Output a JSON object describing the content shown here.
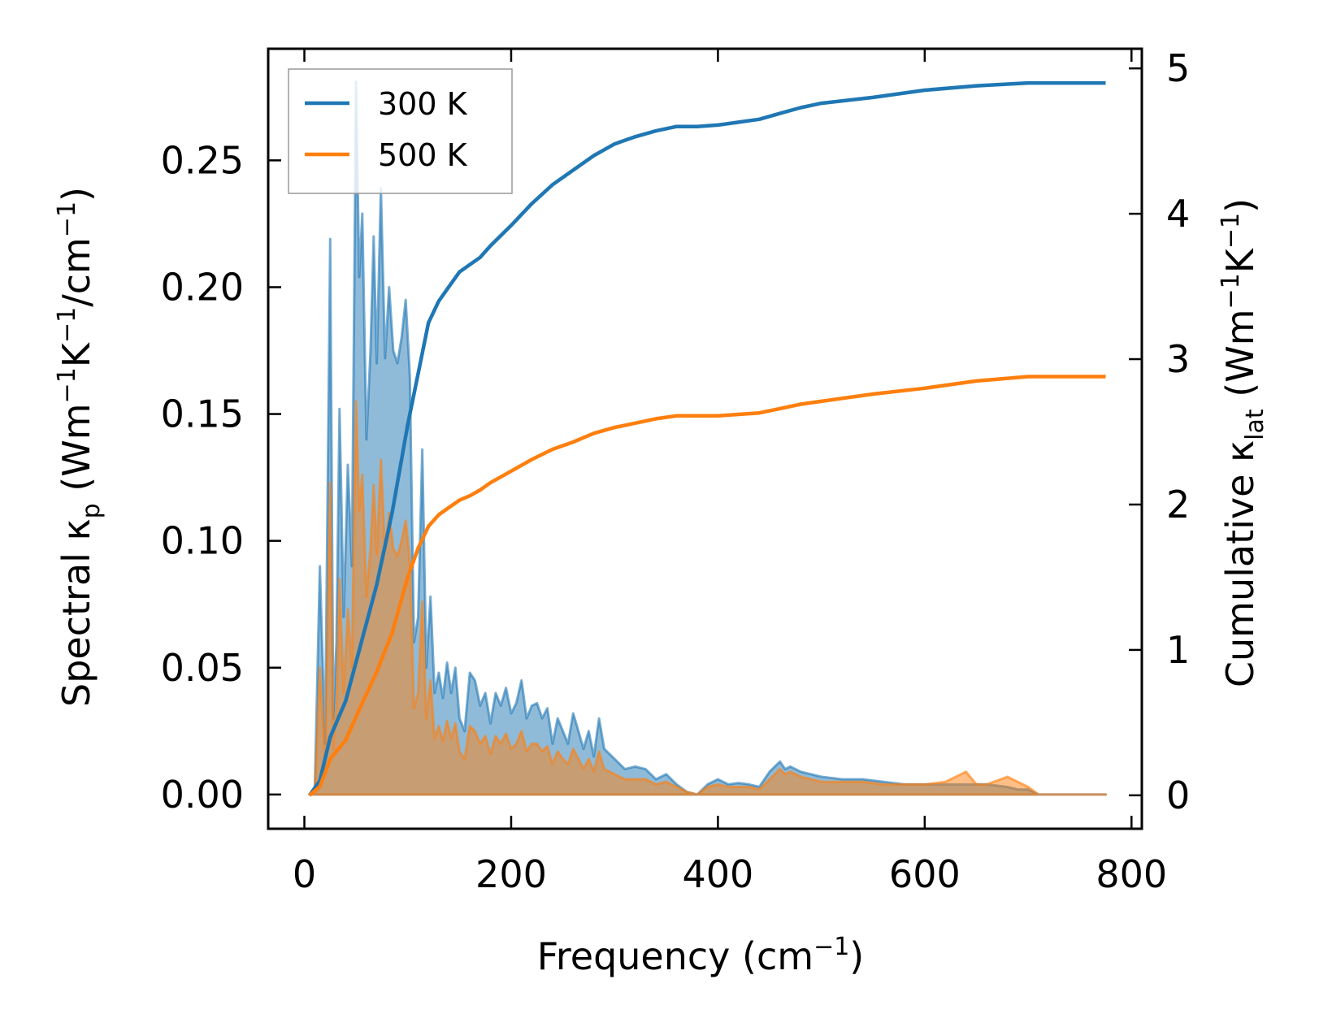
{
  "chart_data": {
    "type": "area",
    "xlabel": "Frequency",
    "xlabel_unit": "(cm",
    "xlabel_sup": "−1",
    "xlabel_close": ")",
    "ylabel_left_parts": [
      {
        "t": "Spectral κ",
        "k": "n"
      },
      {
        "t": "p",
        "k": "sub"
      },
      {
        "t": " (Wm",
        "k": "n"
      },
      {
        "t": "−1",
        "k": "sup"
      },
      {
        "t": "K",
        "k": "n"
      },
      {
        "t": "−1",
        "k": "sup"
      },
      {
        "t": "/cm",
        "k": "n"
      },
      {
        "t": "−1",
        "k": "sup"
      },
      {
        "t": ")",
        "k": "n"
      }
    ],
    "ylabel_right_parts": [
      {
        "t": "Cumulative κ",
        "k": "n"
      },
      {
        "t": "lat",
        "k": "sub"
      },
      {
        "t": " (Wm",
        "k": "n"
      },
      {
        "t": "−1",
        "k": "sup"
      },
      {
        "t": "K",
        "k": "n"
      },
      {
        "t": "−1",
        "k": "sup"
      },
      {
        "t": ")",
        "k": "n"
      }
    ],
    "xlim": [
      -35,
      810
    ],
    "ylim_left": [
      -0.0135,
      0.294
    ],
    "ylim_right": [
      -0.23,
      5.135
    ],
    "x_ticks": [
      0,
      200,
      400,
      600,
      800
    ],
    "x_tick_labels": [
      "0",
      "200",
      "400",
      "600",
      "800"
    ],
    "y_left_ticks": [
      0.0,
      0.05,
      0.1,
      0.15,
      0.2,
      0.25
    ],
    "y_left_tick_labels": [
      "0.00",
      "0.05",
      "0.10",
      "0.15",
      "0.20",
      "0.25"
    ],
    "y_right_ticks": [
      0,
      1,
      2,
      3,
      4,
      5
    ],
    "y_right_tick_labels": [
      "0",
      "1",
      "2",
      "3",
      "4",
      "5"
    ],
    "legend": {
      "location": "top-left",
      "entries": [
        {
          "label": "300 K",
          "color": "#1f77b4"
        },
        {
          "label": "500 K",
          "color": "#ff7f0e"
        }
      ]
    },
    "series": [
      {
        "name": "300 K",
        "color": "#1f77b4",
        "fill_color": "#1f77b4",
        "fill_opacity": 0.5,
        "spectral": {
          "x": [
            5,
            10,
            15,
            20,
            25,
            28,
            31,
            34,
            38,
            42,
            46,
            50,
            53,
            56,
            60,
            64,
            67,
            70,
            74,
            78,
            82,
            86,
            90,
            94,
            98,
            102,
            106,
            110,
            114,
            118,
            122,
            126,
            130,
            134,
            138,
            142,
            146,
            150,
            155,
            160,
            165,
            170,
            175,
            180,
            185,
            190,
            195,
            200,
            205,
            210,
            215,
            220,
            225,
            230,
            235,
            240,
            245,
            250,
            255,
            260,
            265,
            270,
            275,
            280,
            285,
            290,
            300,
            310,
            320,
            330,
            340,
            350,
            360,
            370,
            380,
            390,
            400,
            410,
            420,
            430,
            440,
            450,
            455,
            460,
            465,
            470,
            480,
            490,
            500,
            520,
            540,
            560,
            580,
            600,
            620,
            640,
            650,
            660,
            680,
            690,
            700,
            710,
            720,
            740,
            760,
            775
          ],
          "y": [
            0.0,
            0.0,
            0.09,
            0.02,
            0.219,
            0.03,
            0.06,
            0.152,
            0.07,
            0.13,
            0.09,
            0.281,
            0.204,
            0.229,
            0.14,
            0.175,
            0.22,
            0.17,
            0.239,
            0.172,
            0.2,
            0.175,
            0.17,
            0.18,
            0.195,
            0.165,
            0.06,
            0.07,
            0.136,
            0.05,
            0.078,
            0.04,
            0.048,
            0.038,
            0.052,
            0.04,
            0.05,
            0.03,
            0.025,
            0.048,
            0.045,
            0.035,
            0.04,
            0.028,
            0.04,
            0.035,
            0.042,
            0.032,
            0.036,
            0.045,
            0.03,
            0.035,
            0.036,
            0.03,
            0.034,
            0.02,
            0.03,
            0.025,
            0.02,
            0.032,
            0.025,
            0.018,
            0.025,
            0.015,
            0.03,
            0.018,
            0.014,
            0.01,
            0.011,
            0.01,
            0.006,
            0.008,
            0.004,
            0.001,
            0.0,
            0.004,
            0.006,
            0.004,
            0.0045,
            0.004,
            0.003,
            0.009,
            0.011,
            0.013,
            0.01,
            0.011,
            0.009,
            0.008,
            0.007,
            0.006,
            0.006,
            0.005,
            0.004,
            0.004,
            0.004,
            0.004,
            0.004,
            0.004,
            0.003,
            0.002,
            0.002,
            0.0,
            0.0,
            0.0,
            0.0,
            0.0
          ]
        },
        "cumulative": {
          "x": [
            5,
            15,
            25,
            40,
            55,
            70,
            85,
            100,
            110,
            120,
            130,
            140,
            150,
            160,
            170,
            180,
            200,
            220,
            240,
            260,
            280,
            300,
            320,
            340,
            360,
            380,
            400,
            420,
            440,
            460,
            480,
            500,
            550,
            600,
            650,
            700,
            750,
            775
          ],
          "y": [
            0.0,
            0.1,
            0.4,
            0.65,
            1.05,
            1.45,
            1.95,
            2.55,
            2.9,
            3.25,
            3.4,
            3.5,
            3.6,
            3.65,
            3.7,
            3.78,
            3.92,
            4.07,
            4.2,
            4.3,
            4.4,
            4.48,
            4.53,
            4.57,
            4.6,
            4.6,
            4.61,
            4.63,
            4.65,
            4.69,
            4.73,
            4.76,
            4.8,
            4.85,
            4.88,
            4.9,
            4.9,
            4.9
          ]
        }
      },
      {
        "name": "500 K",
        "color": "#ff7f0e",
        "fill_color": "#ff7f0e",
        "fill_opacity": 0.5,
        "spectral": {
          "x": [
            5,
            10,
            15,
            20,
            25,
            28,
            31,
            34,
            38,
            42,
            46,
            50,
            53,
            56,
            60,
            64,
            67,
            70,
            74,
            78,
            82,
            86,
            90,
            94,
            98,
            102,
            106,
            110,
            114,
            118,
            122,
            126,
            130,
            134,
            138,
            142,
            146,
            150,
            155,
            160,
            165,
            170,
            175,
            180,
            185,
            190,
            195,
            200,
            205,
            210,
            215,
            220,
            225,
            230,
            235,
            240,
            245,
            250,
            255,
            260,
            265,
            270,
            275,
            280,
            285,
            290,
            300,
            310,
            320,
            330,
            340,
            350,
            360,
            370,
            380,
            390,
            400,
            410,
            420,
            430,
            440,
            450,
            455,
            460,
            465,
            470,
            480,
            490,
            500,
            520,
            540,
            560,
            580,
            600,
            620,
            640,
            650,
            660,
            680,
            690,
            700,
            710,
            720,
            740,
            760,
            775
          ],
          "y": [
            0.0,
            0.0,
            0.05,
            0.012,
            0.123,
            0.018,
            0.035,
            0.085,
            0.04,
            0.073,
            0.05,
            0.155,
            0.112,
            0.126,
            0.078,
            0.097,
            0.122,
            0.095,
            0.132,
            0.096,
            0.111,
            0.097,
            0.094,
            0.1,
            0.108,
            0.092,
            0.034,
            0.04,
            0.076,
            0.03,
            0.045,
            0.022,
            0.027,
            0.021,
            0.029,
            0.022,
            0.028,
            0.017,
            0.014,
            0.027,
            0.025,
            0.02,
            0.023,
            0.016,
            0.023,
            0.02,
            0.024,
            0.018,
            0.02,
            0.025,
            0.017,
            0.02,
            0.02,
            0.017,
            0.019,
            0.012,
            0.017,
            0.014,
            0.012,
            0.018,
            0.014,
            0.01,
            0.014,
            0.009,
            0.017,
            0.01,
            0.008,
            0.006,
            0.006,
            0.006,
            0.004,
            0.005,
            0.003,
            0.001,
            0.0,
            0.003,
            0.004,
            0.003,
            0.003,
            0.003,
            0.002,
            0.006,
            0.008,
            0.01,
            0.008,
            0.009,
            0.007,
            0.006,
            0.005,
            0.005,
            0.005,
            0.004,
            0.004,
            0.004,
            0.005,
            0.009,
            0.004,
            0.004,
            0.007,
            0.005,
            0.003,
            0.0,
            0.0,
            0.0,
            0.0,
            0.0
          ]
        },
        "cumulative": {
          "x": [
            5,
            15,
            25,
            40,
            55,
            70,
            85,
            100,
            110,
            120,
            130,
            140,
            150,
            160,
            170,
            180,
            200,
            220,
            240,
            260,
            280,
            300,
            320,
            340,
            360,
            380,
            400,
            420,
            440,
            460,
            480,
            500,
            550,
            600,
            650,
            700,
            750,
            775
          ],
          "y": [
            0.0,
            0.06,
            0.25,
            0.38,
            0.62,
            0.85,
            1.12,
            1.5,
            1.7,
            1.85,
            1.93,
            1.98,
            2.03,
            2.06,
            2.1,
            2.15,
            2.23,
            2.31,
            2.38,
            2.43,
            2.49,
            2.53,
            2.56,
            2.59,
            2.61,
            2.61,
            2.61,
            2.62,
            2.63,
            2.66,
            2.69,
            2.71,
            2.76,
            2.8,
            2.85,
            2.88,
            2.88,
            2.88
          ]
        }
      }
    ]
  }
}
